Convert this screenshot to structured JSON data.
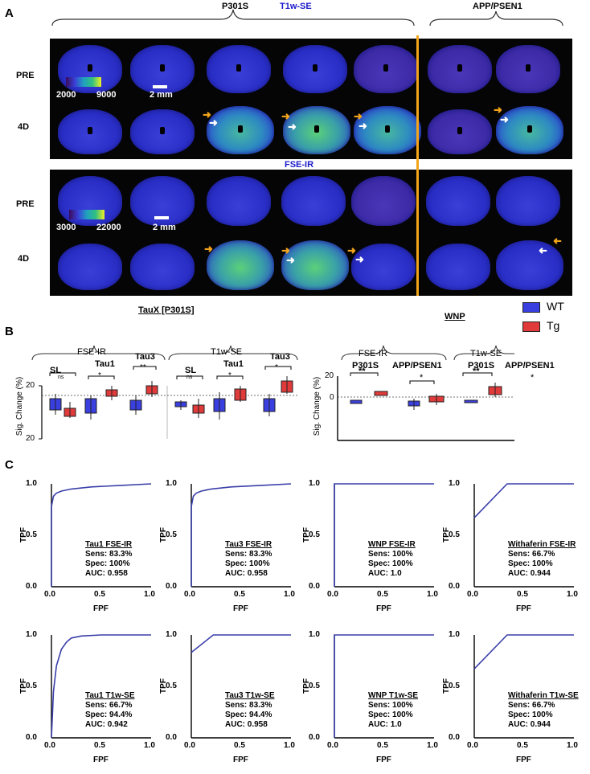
{
  "panel_a": {
    "letter": "A",
    "group_p301s": "P301S",
    "group_app": "APP/PSEN1",
    "t1_title": "T1w-SE",
    "fse_title": "FSE-IR",
    "row_pre": "PRE",
    "row_4d": "4D",
    "t1_cbar_min": "2000",
    "t1_cbar_max": "9000",
    "fse_cbar_min": "3000",
    "fse_cbar_max": "22000",
    "scale": "2 mm"
  },
  "panel_b": {
    "letter": "B",
    "left_title": "TauX [P301S]",
    "right_title": "WNP",
    "legend": [
      {
        "label": "WT",
        "color": "#3a3fe0"
      },
      {
        "label": "Tg",
        "color": "#e03a3a"
      }
    ],
    "fse": "FSE-IR",
    "t1": "T1w-SE",
    "ylabel": "Sig. Change (%)",
    "left_groups": [
      "SL",
      "Tau1",
      "Tau3"
    ],
    "left_sig": [
      "ns",
      "*",
      "**"
    ],
    "right_groups": [
      "P301S",
      "APP/PSEN1"
    ],
    "right_sig_fse": [
      "**",
      "*"
    ],
    "right_sig_t1": [
      "**",
      "*"
    ],
    "yticks": [
      "20",
      "0",
      "20"
    ],
    "right_yticks": [
      "20",
      "0"
    ]
  },
  "panel_c": {
    "letter": "C",
    "xlabel": "FPF",
    "ylabel": "TPF",
    "yticks": [
      "1.0",
      "0.5",
      "0.0"
    ],
    "xticks": [
      "0.0",
      "0.5",
      "1.0"
    ]
  },
  "chart_data": [
    {
      "type": "line",
      "title": "Tau1 FSE-IR",
      "stats": [
        "Sens: 83.3%",
        "Spec: 100%",
        "AUC: 0.958"
      ],
      "x": [
        0,
        0.0,
        0.02,
        0.05,
        0.1,
        0.2,
        0.4,
        0.7,
        1.0
      ],
      "y": [
        0,
        0.78,
        0.88,
        0.91,
        0.93,
        0.95,
        0.97,
        0.985,
        1.0
      ],
      "xlim": [
        0,
        1
      ],
      "ylim": [
        0,
        1
      ]
    },
    {
      "type": "line",
      "title": "Tau3 FSE-IR",
      "stats": [
        "Sens: 83.3%",
        "Spec: 100%",
        "AUC: 0.958"
      ],
      "x": [
        0,
        0.0,
        0.02,
        0.05,
        0.1,
        0.2,
        0.4,
        0.7,
        1.0
      ],
      "y": [
        0,
        0.78,
        0.88,
        0.91,
        0.93,
        0.95,
        0.97,
        0.985,
        1.0
      ],
      "xlim": [
        0,
        1
      ],
      "ylim": [
        0,
        1
      ]
    },
    {
      "type": "line",
      "title": "WNP FSE-IR",
      "stats": [
        "Sens: 100%",
        "Spec: 100%",
        "AUC: 1.0"
      ],
      "x": [
        0,
        0,
        1.0
      ],
      "y": [
        0,
        1.0,
        1.0
      ],
      "xlim": [
        0,
        1
      ],
      "ylim": [
        0,
        1
      ]
    },
    {
      "type": "line",
      "title": "Withaferin FSE-IR",
      "stats": [
        "Sens: 66.7%",
        "Spec: 100%",
        "AUC: 0.944"
      ],
      "x": [
        0,
        0.33,
        1.0
      ],
      "y": [
        0.67,
        1.0,
        1.0
      ],
      "xlim": [
        0,
        1
      ],
      "ylim": [
        0,
        1
      ]
    },
    {
      "type": "line",
      "title": "Tau1 T1w-SE",
      "stats": [
        "Sens: 66.7%",
        "Spec: 94.4%",
        "AUC: 0.942"
      ],
      "x": [
        0,
        0.02,
        0.05,
        0.1,
        0.15,
        0.2,
        0.3,
        0.5,
        1.0
      ],
      "y": [
        0,
        0.45,
        0.7,
        0.86,
        0.93,
        0.97,
        0.99,
        1.0,
        1.0
      ],
      "xlim": [
        0,
        1
      ],
      "ylim": [
        0,
        1
      ]
    },
    {
      "type": "line",
      "title": "Tau3 T1w-SE",
      "stats": [
        "Sens: 83.3%",
        "Spec: 94.4%",
        "AUC: 0.958"
      ],
      "x": [
        0,
        0.22,
        1.0
      ],
      "y": [
        0.83,
        1.0,
        1.0
      ],
      "xlim": [
        0,
        1
      ],
      "ylim": [
        0,
        1
      ]
    },
    {
      "type": "line",
      "title": "WNP T1w-SE",
      "stats": [
        "Sens: 100%",
        "Spec: 100%",
        "AUC: 1.0"
      ],
      "x": [
        0,
        0,
        1.0
      ],
      "y": [
        0,
        1.0,
        1.0
      ],
      "xlim": [
        0,
        1
      ],
      "ylim": [
        0,
        1
      ]
    },
    {
      "type": "line",
      "title": "Withaferin T1w-SE",
      "stats": [
        "Sens: 66.7%",
        "Spec: 100%",
        "AUC: 0.944"
      ],
      "x": [
        0,
        0.33,
        1.0
      ],
      "y": [
        0.67,
        1.0,
        1.0
      ],
      "xlim": [
        0,
        1
      ],
      "ylim": [
        0,
        1
      ]
    }
  ]
}
